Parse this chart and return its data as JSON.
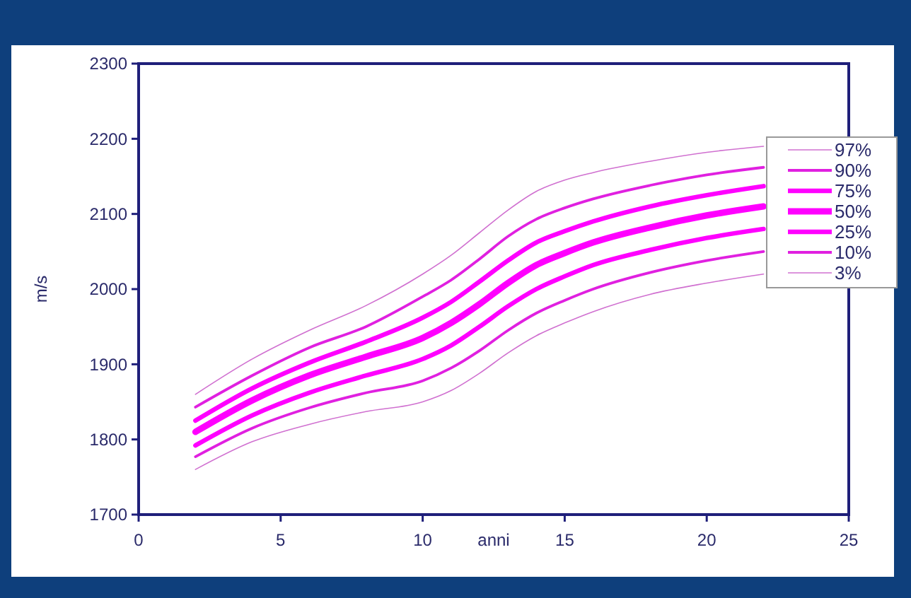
{
  "chart_data": {
    "type": "line",
    "xlabel": "anni",
    "ylabel": "m/s",
    "x": [
      2,
      4,
      6,
      8,
      10,
      11,
      12,
      13,
      14,
      15,
      16,
      18,
      20,
      22
    ],
    "xlim": [
      0,
      25
    ],
    "xticks": [
      0,
      5,
      10,
      15,
      20,
      25
    ],
    "ylim": [
      1700,
      2300
    ],
    "yticks": [
      1700,
      1800,
      1900,
      2000,
      2100,
      2200,
      2300
    ],
    "grid": false,
    "legend": "right",
    "marker": "none",
    "line_style": "solid",
    "series": [
      {
        "name": "97%",
        "color": "#d070d0",
        "values": [
          1860,
          1907,
          1945,
          1978,
          2020,
          2045,
          2075,
          2105,
          2130,
          2145,
          2155,
          2170,
          2182,
          2190
        ]
      },
      {
        "name": "90%",
        "color": "#e020e0",
        "values": [
          1843,
          1885,
          1922,
          1950,
          1990,
          2012,
          2040,
          2070,
          2093,
          2108,
          2120,
          2138,
          2152,
          2162
        ]
      },
      {
        "name": "75%",
        "color": "#ff00ff",
        "values": [
          1825,
          1868,
          1902,
          1930,
          1962,
          1983,
          2010,
          2038,
          2062,
          2077,
          2090,
          2110,
          2125,
          2137
        ]
      },
      {
        "name": "50%",
        "color": "#ff00ff",
        "values": [
          1810,
          1852,
          1885,
          1910,
          1935,
          1955,
          1980,
          2008,
          2032,
          2048,
          2062,
          2082,
          2098,
          2110
        ]
      },
      {
        "name": "25%",
        "color": "#ff00ff",
        "values": [
          1792,
          1832,
          1862,
          1885,
          1907,
          1925,
          1950,
          1977,
          2000,
          2017,
          2032,
          2052,
          2068,
          2080
        ]
      },
      {
        "name": "10%",
        "color": "#e020e0",
        "values": [
          1777,
          1815,
          1842,
          1862,
          1878,
          1895,
          1918,
          1945,
          1968,
          1985,
          2000,
          2022,
          2038,
          2050
        ]
      },
      {
        "name": "3%",
        "color": "#d070d0",
        "values": [
          1760,
          1797,
          1820,
          1837,
          1850,
          1865,
          1888,
          1915,
          1938,
          1955,
          1970,
          1993,
          2008,
          2020
        ]
      }
    ]
  }
}
